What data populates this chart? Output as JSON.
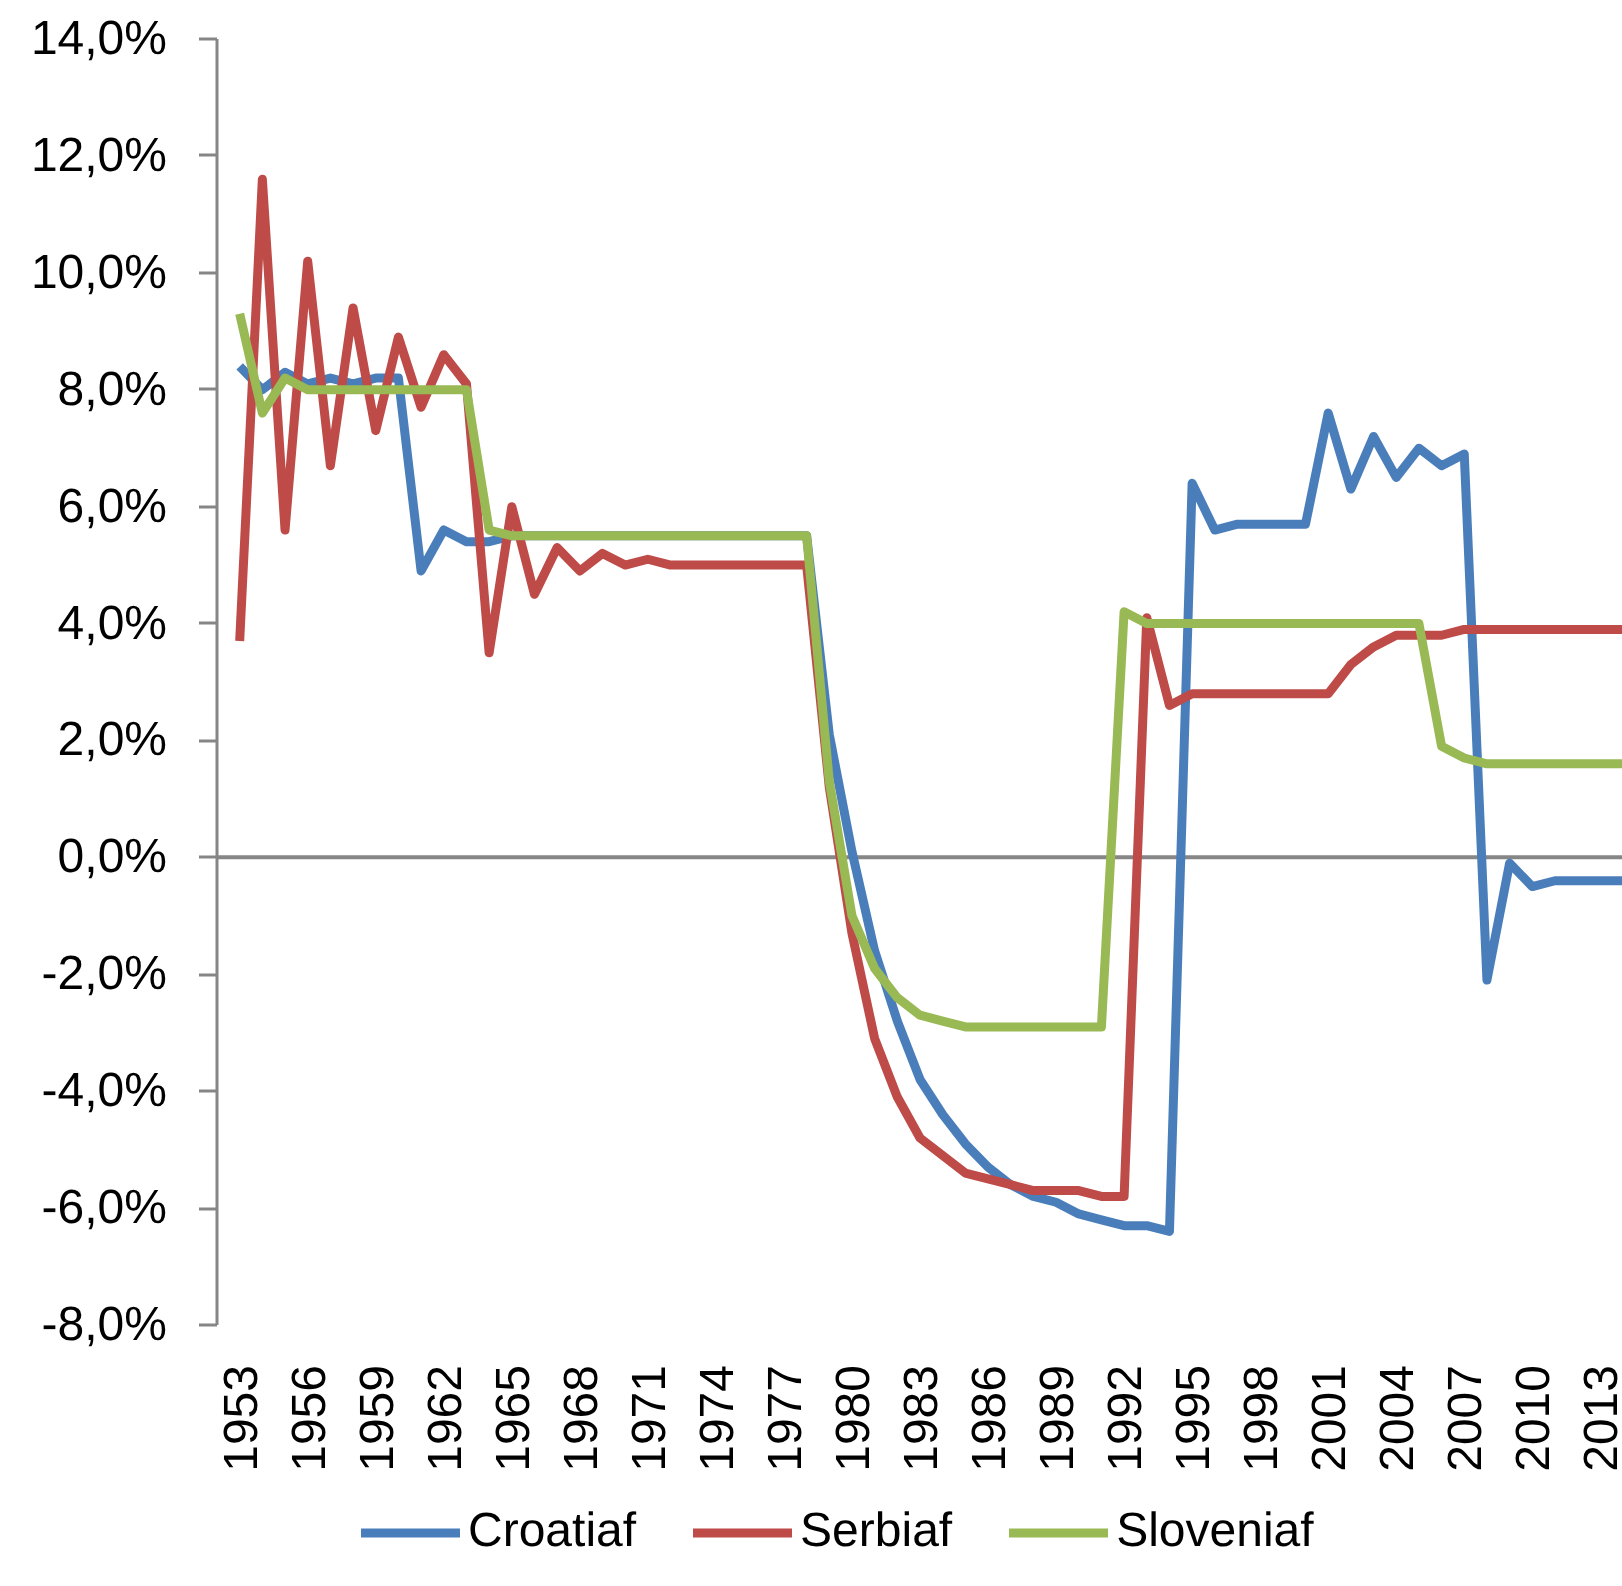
{
  "chart_data": {
    "type": "line",
    "x": [
      1953,
      1954,
      1955,
      1956,
      1957,
      1958,
      1959,
      1960,
      1961,
      1962,
      1963,
      1964,
      1965,
      1966,
      1967,
      1968,
      1969,
      1970,
      1971,
      1972,
      1973,
      1974,
      1975,
      1976,
      1977,
      1978,
      1979,
      1980,
      1981,
      1982,
      1983,
      1984,
      1985,
      1986,
      1987,
      1988,
      1989,
      1990,
      1991,
      1992,
      1993,
      1994,
      1995,
      1996,
      1997,
      1998,
      1999,
      2000,
      2001,
      2002,
      2003,
      2004,
      2005,
      2006,
      2007,
      2008,
      2009,
      2010,
      2011,
      2012,
      2013,
      2014
    ],
    "series": [
      {
        "name": "Croatiaf",
        "color": "#4a7ebb",
        "values": [
          8.4,
          8.0,
          8.3,
          8.1,
          8.2,
          8.1,
          8.2,
          8.2,
          4.9,
          5.6,
          5.4,
          5.4,
          5.5,
          5.5,
          5.5,
          5.5,
          5.5,
          5.5,
          5.5,
          5.5,
          5.5,
          5.5,
          5.5,
          5.5,
          5.5,
          5.5,
          2.1,
          0.1,
          -1.6,
          -2.8,
          -3.8,
          -4.4,
          -4.9,
          -5.3,
          -5.6,
          -5.8,
          -5.9,
          -6.1,
          -6.2,
          -6.3,
          -6.3,
          -6.4,
          6.4,
          5.6,
          5.7,
          5.7,
          5.7,
          5.7,
          7.6,
          6.3,
          7.2,
          6.5,
          7.0,
          6.7,
          6.9,
          -2.1,
          -0.1,
          -0.5,
          -0.4,
          -0.4,
          -0.4,
          -0.4
        ]
      },
      {
        "name": "Serbiaf",
        "color": "#be4b48",
        "values": [
          3.7,
          11.6,
          5.6,
          10.2,
          6.7,
          9.4,
          7.3,
          8.9,
          7.7,
          8.6,
          8.1,
          3.5,
          6.0,
          4.5,
          5.3,
          4.9,
          5.2,
          5.0,
          5.1,
          5.0,
          5.0,
          5.0,
          5.0,
          5.0,
          5.0,
          5.0,
          1.2,
          -1.3,
          -3.1,
          -4.1,
          -4.8,
          -5.1,
          -5.4,
          -5.5,
          -5.6,
          -5.7,
          -5.7,
          -5.7,
          -5.8,
          -5.8,
          4.1,
          2.6,
          2.8,
          2.8,
          2.8,
          2.8,
          2.8,
          2.8,
          2.8,
          3.3,
          3.6,
          3.8,
          3.8,
          3.8,
          3.9,
          3.9,
          3.9,
          3.9,
          3.9,
          3.9,
          3.9,
          3.9
        ]
      },
      {
        "name": "Sloveniaf",
        "color": "#98b954",
        "values": [
          9.3,
          7.6,
          8.2,
          8.0,
          8.0,
          8.0,
          8.0,
          8.0,
          8.0,
          8.0,
          8.0,
          5.6,
          5.5,
          5.5,
          5.5,
          5.5,
          5.5,
          5.5,
          5.5,
          5.5,
          5.5,
          5.5,
          5.5,
          5.5,
          5.5,
          5.5,
          1.3,
          -1.0,
          -1.9,
          -2.4,
          -2.7,
          -2.8,
          -2.9,
          -2.9,
          -2.9,
          -2.9,
          -2.9,
          -2.9,
          -2.9,
          4.2,
          4.0,
          4.0,
          4.0,
          4.0,
          4.0,
          4.0,
          4.0,
          4.0,
          4.0,
          4.0,
          4.0,
          4.0,
          4.0,
          1.9,
          1.7,
          1.6,
          1.6,
          1.6,
          1.6,
          1.6,
          1.6,
          1.6
        ]
      }
    ],
    "xlim": [
      1952,
      2014
    ],
    "xticks": [
      1953,
      1956,
      1959,
      1962,
      1965,
      1968,
      1971,
      1974,
      1977,
      1980,
      1983,
      1986,
      1989,
      1992,
      1995,
      1998,
      2001,
      2004,
      2007,
      2010,
      2013
    ],
    "ylim": [
      -8,
      14
    ],
    "yticks": [
      {
        "value": -8,
        "label": "-8,0%"
      },
      {
        "value": -6,
        "label": "-6,0%"
      },
      {
        "value": -4,
        "label": "-4,0%"
      },
      {
        "value": -2,
        "label": "-2,0%"
      },
      {
        "value": 0,
        "label": "0,0%"
      },
      {
        "value": 2,
        "label": "2,0%"
      },
      {
        "value": 4,
        "label": "4,0%"
      },
      {
        "value": 6,
        "label": "6,0%"
      },
      {
        "value": 8,
        "label": "8,0%"
      },
      {
        "value": 10,
        "label": "10,0%"
      },
      {
        "value": 12,
        "label": "12,0%"
      },
      {
        "value": 14,
        "label": "14,0%"
      }
    ],
    "ref_lines": [
      {
        "axis": "y",
        "value": 0,
        "color": "#868686"
      }
    ],
    "legend": "bottom",
    "line_style": "solid"
  }
}
